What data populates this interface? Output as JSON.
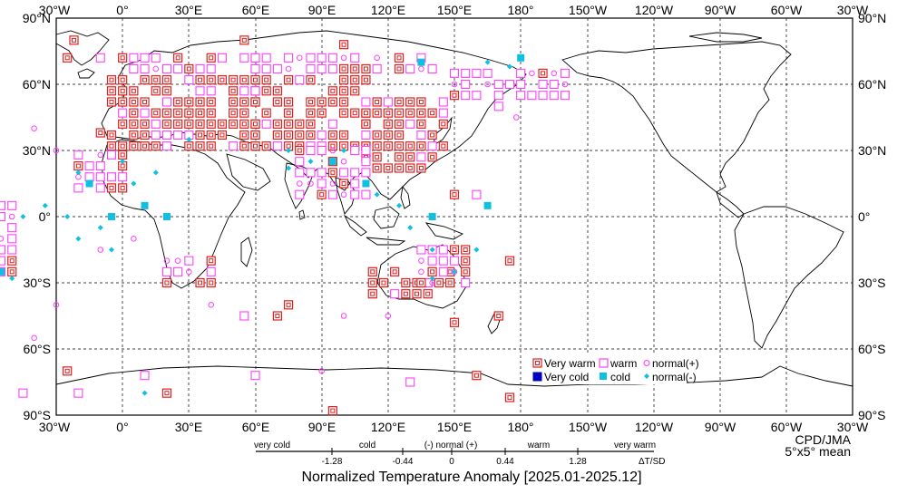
{
  "map": {
    "top_labels": [
      "30°W",
      "0°",
      "30°E",
      "60°E",
      "90°E",
      "120°E",
      "150°E",
      "180°",
      "150°W",
      "120°W",
      "90°W",
      "60°W",
      "30°W"
    ],
    "bottom_labels": [
      "30°W",
      "0°",
      "30°E",
      "60°E",
      "90°E",
      "120°E",
      "150°E",
      "180°",
      "150°W",
      "120°W",
      "90°W",
      "60°W",
      "30°W"
    ],
    "lat_labels": [
      "90°N",
      "60°N",
      "30°N",
      "0°",
      "30°S",
      "60°S",
      "90°S"
    ],
    "credit_line1": "CPD/JMA",
    "credit_line2": "5°x5° mean"
  },
  "legend": {
    "very_warm": "Very warm",
    "warm": "warm",
    "normal_plus": "normal(+)",
    "very_cold": "Very cold",
    "cold": "cold",
    "normal_minus": "normal(-)"
  },
  "scale": {
    "category_labels": [
      "very cold",
      "cold",
      "(-) normal (+)",
      "warm",
      "very warm"
    ],
    "tick_labels": [
      "-1.28",
      "-0.44",
      "0",
      "0.44",
      "1.28"
    ],
    "unit_label": "ΔT/SD",
    "title": "Normalized Temperature Anomaly [2025.01-2025.12]"
  },
  "colors": {
    "very_warm": "#e02020",
    "warm": "#ff40ff",
    "normal_plus": "#ff40ff",
    "very_cold": "#0000c0",
    "cold": "#10c0e0",
    "normal_minus": "#10c0e0",
    "coast": "#000000",
    "grid": "#000000"
  }
}
